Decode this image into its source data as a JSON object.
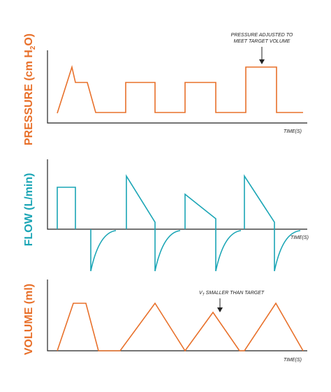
{
  "panels": [
    {
      "label": {
        "main": "PRESSURE (cm H",
        "sub": "2",
        "tail": "O)"
      },
      "axis_label": "TIME(S)",
      "annotation": [
        "PRESSURE ADJUSTED TO",
        "MEET TARGET VOLUME"
      ]
    },
    {
      "label": {
        "main": "FLOW (L/min)"
      },
      "axis_label": "TIME(S)"
    },
    {
      "label": {
        "main": "VOLUME (ml)"
      },
      "axis_label": "TIME(S)",
      "annotation": {
        "symbol": "V",
        "sub": "T",
        "text": " SMALLER THAN TARGET"
      }
    }
  ]
}
